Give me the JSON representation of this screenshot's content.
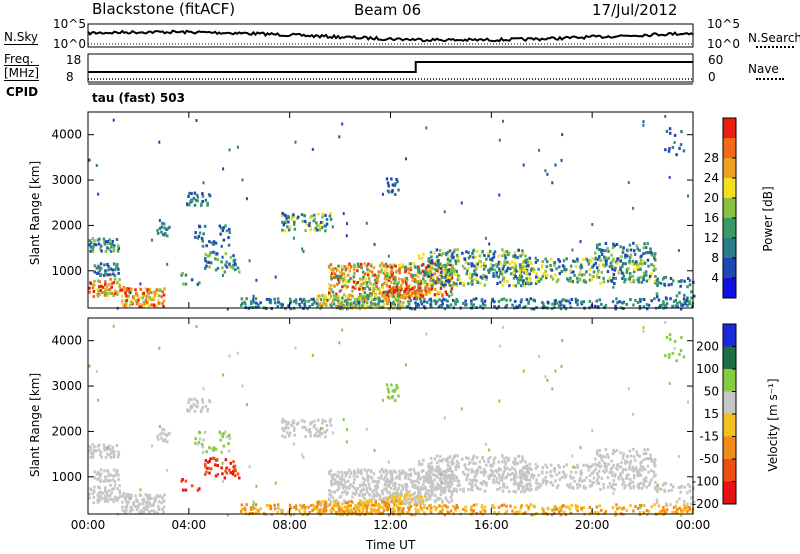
{
  "header": {
    "station": "Blackstone (fitACF)",
    "beam": "Beam 06",
    "date": "17/Jul/2012"
  },
  "sky_panel": {
    "left_label": "N.Sky",
    "right_label": "N.Search",
    "ticks_left": [
      "10^5",
      "10^0"
    ],
    "ticks_right": [
      "10^5",
      "10^0"
    ]
  },
  "freq_panel": {
    "left_label_line1": "Freq.",
    "left_label_line2": "[MHz]",
    "left_ticks": [
      "18",
      "8"
    ],
    "right_label": "Nave",
    "right_ticks": [
      "60",
      "0"
    ]
  },
  "cpid": {
    "label": "CPID",
    "text": "tau (fast) 503"
  },
  "chart_data": [
    {
      "type": "heatmap",
      "title": "",
      "quantity": "Power",
      "ylabel": "Slant Range [km]",
      "xlabel": "",
      "x_ticks": [
        "00:00",
        "04:00",
        "08:00",
        "12:00",
        "16:00",
        "20:00",
        "00:00"
      ],
      "y_ticks": [
        "1000",
        "2000",
        "3000",
        "4000"
      ],
      "ylim": [
        180,
        4500
      ],
      "xlim_hours": [
        0,
        24
      ],
      "colorbar_label": "Power [dB]",
      "colorbar_ticks": [
        "4",
        "8",
        "12",
        "16",
        "20",
        "24",
        "28"
      ],
      "colorbar_colors": [
        "#1010e0",
        "#1e48b4",
        "#2a7e8c",
        "#3a9a66",
        "#88c040",
        "#f2e020",
        "#f0a020",
        "#f06a18",
        "#e82010"
      ],
      "features": [
        {
          "time": "00:00-01:00",
          "range_km": "~1600",
          "level_dB": "4-12"
        },
        {
          "time": "00:00-01:30",
          "range_km": "~600",
          "level_dB": "12-28"
        },
        {
          "time": "01:30-03:00",
          "range_km": "300-600",
          "level_dB": "16-28"
        },
        {
          "time": "04:00-05:00",
          "range_km": "~2600",
          "level_dB": "4-12"
        },
        {
          "time": "08:00-10:00",
          "range_km": "~2200",
          "level_dB": "8-16"
        },
        {
          "time": "10:00-14:00",
          "range_km": "500-1200",
          "level_dB": "8-28"
        },
        {
          "time": "09:00-24:00",
          "range_km": "180-400",
          "level_dB": "4-16"
        },
        {
          "time": "18:00-23:00",
          "range_km": "800-1500",
          "level_dB": "4-16"
        }
      ]
    },
    {
      "type": "heatmap",
      "title": "",
      "quantity": "Velocity",
      "ylabel": "Slant Range [km]",
      "xlabel": "Time UT",
      "x_ticks": [
        "00:00",
        "04:00",
        "08:00",
        "12:00",
        "16:00",
        "20:00",
        "00:00"
      ],
      "y_ticks": [
        "1000",
        "2000",
        "3000",
        "4000"
      ],
      "ylim": [
        180,
        4500
      ],
      "xlim_hours": [
        0,
        24
      ],
      "colorbar_label": "Velocity [m s⁻¹]",
      "colorbar_ticks": [
        "200",
        "100",
        "50",
        "15",
        "-15",
        "-50",
        "-100",
        "-200"
      ],
      "colorbar_colors": [
        "#1a2ad8",
        "#1e6e46",
        "#86cc40",
        "#c6c6c6",
        "#f4c020",
        "#f08a18",
        "#ec5014",
        "#e81010"
      ],
      "features": [
        {
          "time": "00:00-03:00",
          "range_km": "300-1700",
          "velocity": "-15..15"
        },
        {
          "time": "04:00-06:00",
          "range_km": "1000-1500",
          "velocity": "-100..-200"
        },
        {
          "time": "09:00-15:00",
          "range_km": "180-450",
          "velocity": "-15..-50"
        },
        {
          "time": "12:00-22:00",
          "range_km": "700-1500",
          "velocity": "-15..15"
        }
      ]
    }
  ],
  "colors": {
    "frame": "#000000",
    "background": "#ffffff"
  }
}
